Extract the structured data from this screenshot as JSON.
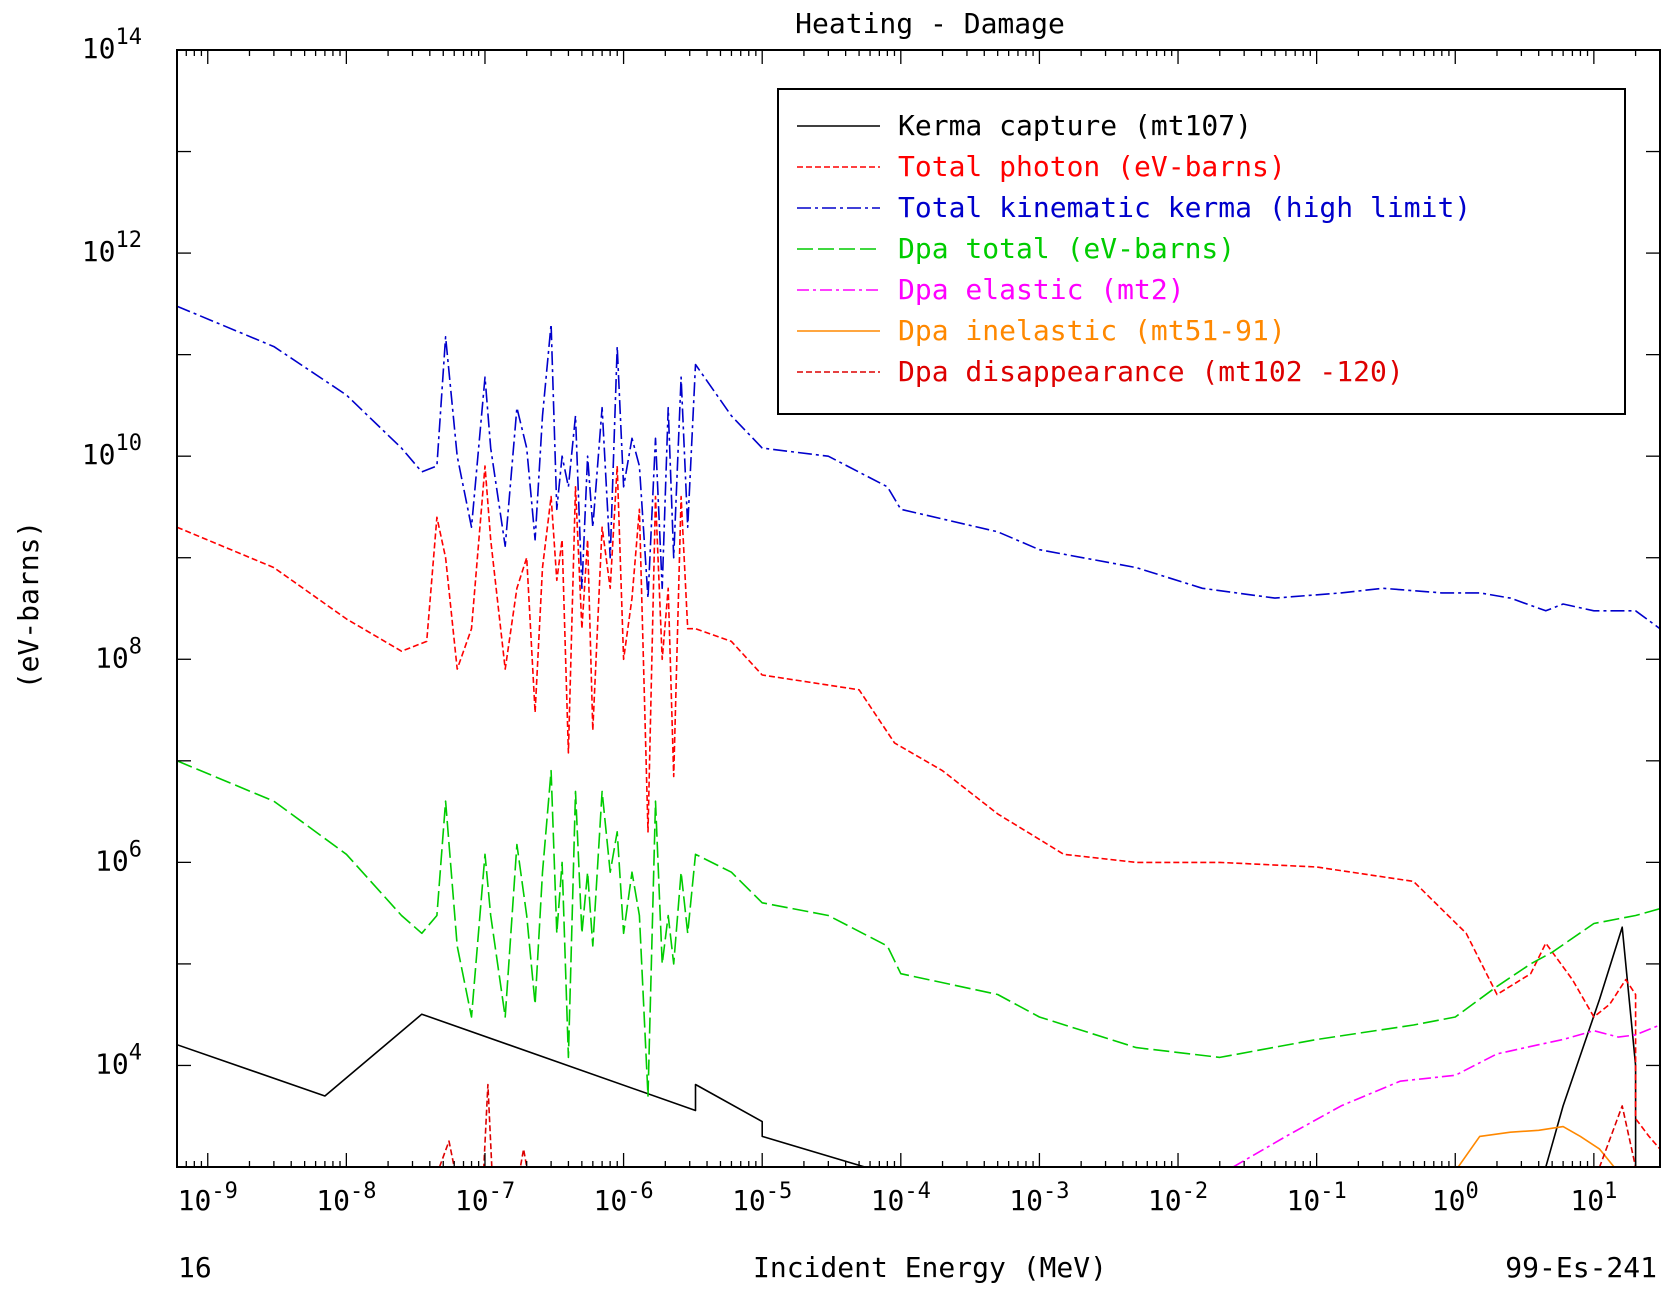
{
  "chart_data": {
    "type": "line",
    "title": "Heating - Damage",
    "xlabel": "Incident Energy (MeV)",
    "ylabel": "(eV-barns)",
    "footer_left": "16",
    "footer_right": "99-Es-241",
    "x_scale": "log",
    "y_scale": "log",
    "xlim": [
      6e-10,
      30
    ],
    "ylim": [
      1000,
      100000000000000.0
    ],
    "x_ticks": [
      {
        "v": 1e-09,
        "base": "10",
        "exp": "-9"
      },
      {
        "v": 1e-08,
        "base": "10",
        "exp": "-8"
      },
      {
        "v": 1e-07,
        "base": "10",
        "exp": "-7"
      },
      {
        "v": 1e-06,
        "base": "10",
        "exp": "-6"
      },
      {
        "v": 1e-05,
        "base": "10",
        "exp": "-5"
      },
      {
        "v": 0.0001,
        "base": "10",
        "exp": "-4"
      },
      {
        "v": 0.001,
        "base": "10",
        "exp": "-3"
      },
      {
        "v": 0.01,
        "base": "10",
        "exp": "-2"
      },
      {
        "v": 0.1,
        "base": "10",
        "exp": "-1"
      },
      {
        "v": 1,
        "base": "10",
        "exp": "0"
      },
      {
        "v": 10,
        "base": "10",
        "exp": "1"
      }
    ],
    "y_ticks": [
      {
        "v": 10000.0,
        "base": "10",
        "exp": "4"
      },
      {
        "v": 1000000.0,
        "base": "10",
        "exp": "6"
      },
      {
        "v": 100000000.0,
        "base": "10",
        "exp": "8"
      },
      {
        "v": 10000000000.0,
        "base": "10",
        "exp": "10"
      },
      {
        "v": 1000000000000.0,
        "base": "10",
        "exp": "12"
      },
      {
        "v": 100000000000000.0,
        "base": "10",
        "exp": "14"
      }
    ],
    "grid": false,
    "legend_position": "top-right",
    "series": [
      {
        "name": "Kerma capture (mt107)",
        "color": "#000000",
        "dash": "",
        "x": [
          6e-10,
          7e-09,
          3.5e-08,
          3.3e-06,
          3.3e-06,
          1e-05,
          1e-05,
          5.5e-05,
          4.5,
          6,
          11,
          16,
          20,
          20
        ],
        "y": [
          16000,
          5000,
          32000,
          3600,
          6500,
          2800,
          2000,
          1000,
          1000,
          4000,
          45000,
          230000,
          10000,
          1000
        ]
      },
      {
        "name": "Total photon (eV-barns)",
        "color": "#ff0000",
        "dash": "6,3",
        "x": [
          6e-10,
          3e-09,
          1e-08,
          2.5e-08,
          3.8e-08,
          4.5e-08,
          5.2e-08,
          6.3e-08,
          8e-08,
          1e-07,
          1.1e-07,
          1.4e-07,
          1.7e-07,
          2e-07,
          2.3e-07,
          2.6e-07,
          3e-07,
          3.3e-07,
          3.6e-07,
          4e-07,
          4.5e-07,
          5e-07,
          5.5e-07,
          6e-07,
          7e-07,
          8e-07,
          9e-07,
          1e-06,
          1.15e-06,
          1.3e-06,
          1.5e-06,
          1.7e-06,
          1.9e-06,
          2.1e-06,
          2.3e-06,
          2.6e-06,
          2.9e-06,
          3.3e-06,
          6e-06,
          1e-05,
          5e-05,
          9e-05,
          0.0002,
          0.0005,
          0.0015,
          0.005,
          0.02,
          0.1,
          0.5,
          1.2,
          2,
          3.5,
          4.5,
          7,
          10,
          13,
          17,
          20,
          20,
          25,
          30
        ],
        "y": [
          2000000000.0,
          800000000.0,
          250000000.0,
          120000000.0,
          150000000.0,
          2500000000.0,
          1000000000.0,
          80000000.0,
          200000000.0,
          8000000000.0,
          1500000000.0,
          80000000.0,
          500000000.0,
          1000000000.0,
          30000000.0,
          800000000.0,
          4000000000.0,
          600000000.0,
          1500000000.0,
          12000000.0,
          5000000000.0,
          200000000.0,
          1500000000.0,
          20000000.0,
          2000000000.0,
          500000000.0,
          8000000000.0,
          100000000.0,
          400000000.0,
          3000000000.0,
          2000000.0,
          4000000000.0,
          100000000.0,
          500000000.0,
          7000000.0,
          4000000000.0,
          200000000.0,
          200000000.0,
          150000000.0,
          70000000.0,
          50000000.0,
          15000000.0,
          8000000.0,
          3000000.0,
          1200000.0,
          1000000.0,
          1000000.0,
          900000.0,
          650000.0,
          200000.0,
          50000.0,
          80000.0,
          160000.0,
          70000.0,
          30000.0,
          40000.0,
          70000.0,
          50000.0,
          3000.0,
          2000.0,
          1500.0
        ]
      },
      {
        "name": "Total kinematic kerma (high limit)",
        "color": "#0000cc",
        "dash": "14,4,3,4",
        "x": [
          6e-10,
          3e-09,
          1e-08,
          2.5e-08,
          3.5e-08,
          4.5e-08,
          5.2e-08,
          6.3e-08,
          8e-08,
          1e-07,
          1.1e-07,
          1.4e-07,
          1.7e-07,
          2e-07,
          2.3e-07,
          2.6e-07,
          3e-07,
          3.3e-07,
          3.6e-07,
          4e-07,
          4.5e-07,
          5e-07,
          5.5e-07,
          6e-07,
          7e-07,
          8e-07,
          9e-07,
          1e-06,
          1.15e-06,
          1.3e-06,
          1.5e-06,
          1.7e-06,
          1.9e-06,
          2.1e-06,
          2.3e-06,
          2.6e-06,
          2.9e-06,
          3.3e-06,
          6e-06,
          1e-05,
          3e-05,
          8e-05,
          0.0001,
          0.0005,
          0.001,
          0.005,
          0.015,
          0.05,
          0.15,
          0.3,
          0.8,
          1.5,
          2.5,
          4.5,
          6,
          10,
          20,
          30
        ],
        "y": [
          300000000000.0,
          120000000000.0,
          40000000000.0,
          12000000000.0,
          7000000000.0,
          8000000000.0,
          150000000000.0,
          10000000000.0,
          2000000000.0,
          60000000000.0,
          12000000000.0,
          1300000000.0,
          30000000000.0,
          12000000000.0,
          1500000000.0,
          25000000000.0,
          200000000000.0,
          3000000000.0,
          10000000000.0,
          5000000000.0,
          25000000000.0,
          500000000.0,
          10000000000.0,
          2000000000.0,
          30000000000.0,
          1000000000.0,
          120000000000.0,
          5000000000.0,
          15000000000.0,
          8000000000.0,
          400000000.0,
          15000000000.0,
          500000000.0,
          30000000000.0,
          1000000000.0,
          60000000000.0,
          2000000000.0,
          80000000000.0,
          25000000000.0,
          12000000000.0,
          10000000000.0,
          5000000000.0,
          3000000000.0,
          1800000000.0,
          1200000000.0,
          800000000.0,
          500000000.0,
          400000000.0,
          450000000.0,
          500000000.0,
          450000000.0,
          450000000.0,
          400000000.0,
          300000000.0,
          350000000.0,
          300000000.0,
          300000000.0,
          200000000.0
        ]
      },
      {
        "name": "Dpa total (eV-barns)",
        "color": "#00cc00",
        "dash": "16,5",
        "x": [
          6e-10,
          3e-09,
          1e-08,
          2.5e-08,
          3.5e-08,
          4.5e-08,
          5.2e-08,
          6.3e-08,
          8e-08,
          1e-07,
          1.1e-07,
          1.4e-07,
          1.7e-07,
          2e-07,
          2.3e-07,
          2.6e-07,
          3e-07,
          3.3e-07,
          3.6e-07,
          4e-07,
          4.5e-07,
          5e-07,
          5.5e-07,
          6e-07,
          7e-07,
          8e-07,
          9e-07,
          1e-06,
          1.15e-06,
          1.3e-06,
          1.5e-06,
          1.7e-06,
          1.9e-06,
          2.1e-06,
          2.3e-06,
          2.6e-06,
          2.9e-06,
          3.3e-06,
          6e-06,
          1e-05,
          3e-05,
          8e-05,
          0.0001,
          0.0005,
          0.001,
          0.005,
          0.02,
          0.1,
          0.5,
          1,
          2,
          3.5,
          5,
          10,
          20,
          30
        ],
        "y": [
          10000000.0,
          4000000.0,
          1200000.0,
          300000.0,
          200000.0,
          300000.0,
          4000000.0,
          150000.0,
          30000.0,
          1200000.0,
          300000.0,
          30000.0,
          1500000.0,
          300000.0,
          40000.0,
          800000.0,
          8000000.0,
          200000.0,
          1000000.0,
          12000.0,
          5000000.0,
          200000.0,
          800000.0,
          150000.0,
          5000000.0,
          800000.0,
          2000000.0,
          200000.0,
          800000.0,
          300000.0,
          5000,
          4000000.0,
          100000.0,
          300000.0,
          100000.0,
          800000.0,
          200000.0,
          1200000.0,
          800000.0,
          400000.0,
          300000.0,
          150000.0,
          80000.0,
          50000.0,
          30000.0,
          15000.0,
          12000.0,
          18000.0,
          25000.0,
          30000.0,
          60000.0,
          100000.0,
          130000.0,
          250000.0,
          300000.0,
          350000.0
        ]
      },
      {
        "name": "Dpa elastic (mt2)",
        "color": "#ff00ff",
        "dash": "12,4,3,4",
        "x": [
          0.025,
          0.06,
          0.15,
          0.4,
          1,
          2,
          4,
          6,
          10,
          15,
          20,
          30
        ],
        "y": [
          1000,
          2000,
          4000,
          7000,
          8000,
          13000.0,
          16000.0,
          18000.0,
          22000.0,
          19000.0,
          20000.0,
          25000.0
        ]
      },
      {
        "name": "Dpa inelastic (mt51-91)",
        "color": "#ff8800",
        "dash": "",
        "x": [
          1.05,
          1.5,
          2.5,
          4,
          6,
          8,
          11,
          14
        ],
        "y": [
          1000,
          2000,
          2200,
          2300,
          2500,
          2000,
          1500,
          1000
        ]
      },
      {
        "name": "Dpa disappearance (mt102 -120)",
        "color": "#dd0000",
        "dash": "6,3",
        "x": [
          4.7e-08,
          5.5e-08,
          6e-08,
          9.8e-08,
          1.05e-07,
          1.12e-07,
          1.8e-07,
          1.9e-07,
          2e-07,
          11,
          16,
          20
        ],
        "y": [
          1000,
          1800,
          1000,
          1000,
          6500,
          1000,
          1000,
          1500,
          1000,
          1000,
          4000,
          1000
        ]
      }
    ]
  }
}
